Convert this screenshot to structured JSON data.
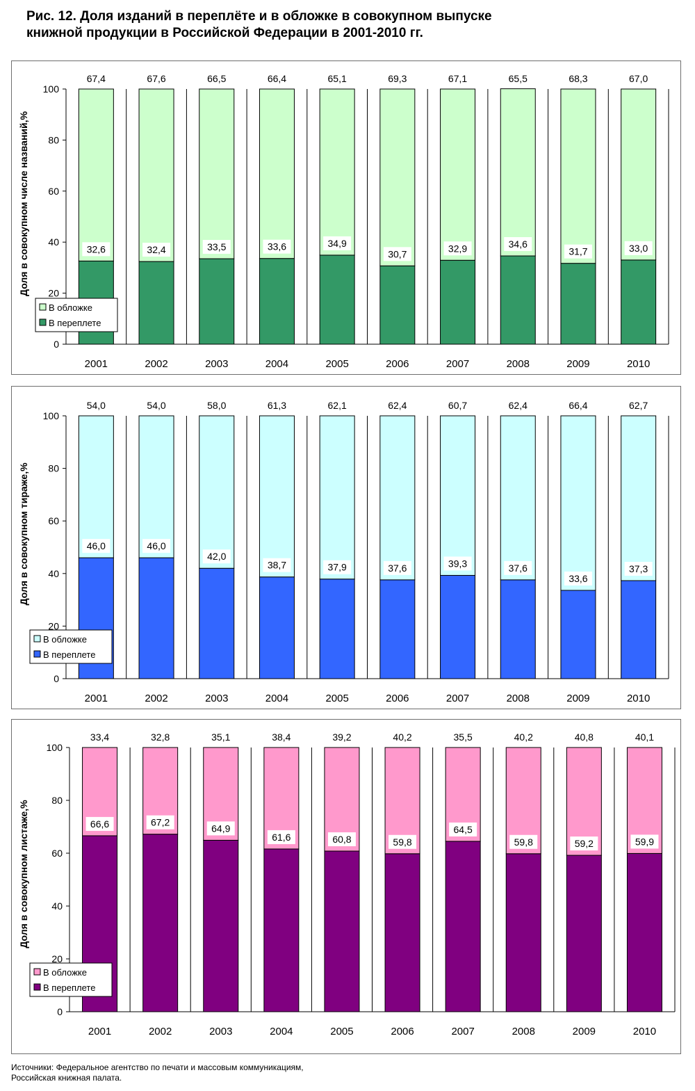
{
  "figure": {
    "title_lines": [
      "Рис. 12. Доля изданий в переплёте и в обложке в совокупном выпуске",
      "книжной продукции в Российской Федерации в 2001-2010 гг."
    ],
    "source_lines": [
      "Источники: Федеральное агентство по печати и массовым коммуникациям,",
      "Российская книжная палата."
    ]
  },
  "chart_data": [
    {
      "type": "bar",
      "stacked": true,
      "ylabel": "Доля в совокупном числе названий,%",
      "ylim": [
        0,
        100
      ],
      "yticks": [
        "0",
        "20",
        "40",
        "60",
        "80",
        "100"
      ],
      "categories": [
        "2001",
        "2002",
        "2003",
        "2004",
        "2005",
        "2006",
        "2007",
        "2008",
        "2009",
        "2010"
      ],
      "legend_position": "bottom-left",
      "series": [
        {
          "name": "В переплете",
          "color": "#339966",
          "values": [
            32.6,
            32.4,
            33.5,
            33.6,
            34.9,
            30.7,
            32.9,
            34.6,
            31.7,
            33.0
          ],
          "labels": [
            "32,6",
            "32,4",
            "33,5",
            "33,6",
            "34,9",
            "30,7",
            "32,9",
            "34,6",
            "31,7",
            "33,0"
          ]
        },
        {
          "name": "В обложке",
          "color": "#ccffcc",
          "values": [
            67.4,
            67.6,
            66.5,
            66.4,
            65.1,
            69.3,
            67.1,
            65.5,
            68.3,
            67.0
          ],
          "labels": [
            "67,4",
            "67,6",
            "66,5",
            "66,4",
            "65,1",
            "69,3",
            "67,1",
            "65,5",
            "68,3",
            "67,0"
          ]
        }
      ]
    },
    {
      "type": "bar",
      "stacked": true,
      "ylabel": "Доля в совокупном тираже,%",
      "ylim": [
        0,
        100
      ],
      "yticks": [
        "0",
        "20",
        "40",
        "60",
        "80",
        "100"
      ],
      "categories": [
        "2001",
        "2002",
        "2003",
        "2004",
        "2005",
        "2006",
        "2007",
        "2008",
        "2009",
        "2010"
      ],
      "legend_position": "bottom-left",
      "series": [
        {
          "name": "В переплете",
          "color": "#3366ff",
          "values": [
            46.0,
            46.0,
            42.0,
            38.7,
            37.9,
            37.6,
            39.3,
            37.6,
            33.6,
            37.3
          ],
          "labels": [
            "46,0",
            "46,0",
            "42,0",
            "38,7",
            "37,9",
            "37,6",
            "39,3",
            "37,6",
            "33,6",
            "37,3"
          ]
        },
        {
          "name": "В обложке",
          "color": "#ccffff",
          "values": [
            54.0,
            54.0,
            58.0,
            61.3,
            62.1,
            62.4,
            60.7,
            62.4,
            66.4,
            62.7
          ],
          "labels": [
            "54,0",
            "54,0",
            "58,0",
            "61,3",
            "62,1",
            "62,4",
            "60,7",
            "62,4",
            "66,4",
            "62,7"
          ]
        }
      ]
    },
    {
      "type": "bar",
      "stacked": true,
      "ylabel": "Доля в совокупном листаже,%",
      "ylim": [
        0,
        100
      ],
      "yticks": [
        "0",
        "20",
        "40",
        "60",
        "80",
        "100"
      ],
      "categories": [
        "2001",
        "2002",
        "2003",
        "2004",
        "2005",
        "2006",
        "2007",
        "2008",
        "2009",
        "2010"
      ],
      "legend_position": "bottom-left",
      "series": [
        {
          "name": "В переплете",
          "color": "#800080",
          "values": [
            66.6,
            67.2,
            64.9,
            61.6,
            60.8,
            59.8,
            64.5,
            59.8,
            59.2,
            59.9
          ],
          "labels": [
            "66,6",
            "67,2",
            "64,9",
            "61,6",
            "60,8",
            "59,8",
            "64,5",
            "59,8",
            "59,2",
            "59,9"
          ]
        },
        {
          "name": "В обложке",
          "color": "#ff99cc",
          "values": [
            33.4,
            32.8,
            35.1,
            38.4,
            39.2,
            40.2,
            35.5,
            40.2,
            40.8,
            40.1
          ],
          "labels": [
            "33,4",
            "32,8",
            "35,1",
            "38,4",
            "39,2",
            "40,2",
            "35,5",
            "40,2",
            "40,8",
            "40,1"
          ]
        }
      ]
    }
  ]
}
